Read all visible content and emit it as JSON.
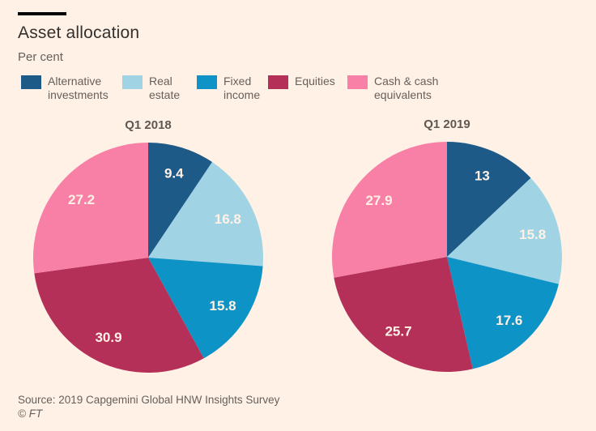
{
  "page": {
    "background_color": "#FFF1E5",
    "accent_bar_color": "#000000"
  },
  "header": {
    "title": "Asset allocation",
    "subtitle": "Per cent"
  },
  "legend": {
    "items": [
      {
        "label": "Alternative investments",
        "color": "#1E5A88"
      },
      {
        "label": "Real estate",
        "color": "#A0D4E4"
      },
      {
        "label": "Fixed income",
        "color": "#0E93C7"
      },
      {
        "label": "Equities",
        "color": "#B43059"
      },
      {
        "label": "Cash & cash equivalents",
        "color": "#F880A7"
      }
    ]
  },
  "chart_data": [
    {
      "type": "pie",
      "title": "Q1 2018",
      "categories": [
        "Alternative investments",
        "Real estate",
        "Fixed income",
        "Equities",
        "Cash & cash equivalents"
      ],
      "values": [
        9.4,
        16.8,
        15.8,
        30.9,
        27.2
      ],
      "value_labels": [
        "9.4",
        "16.8",
        "15.8",
        "30.9",
        "27.2"
      ],
      "colors": [
        "#1E5A88",
        "#A0D4E4",
        "#0E93C7",
        "#B43059",
        "#F880A7"
      ],
      "start_angle_deg": 0,
      "direction": "clockwise",
      "legend_position": "top",
      "value_label_color": "#FFF1E5"
    },
    {
      "type": "pie",
      "title": "Q1 2019",
      "categories": [
        "Alternative investments",
        "Real estate",
        "Fixed income",
        "Equities",
        "Cash & cash equivalents"
      ],
      "values": [
        13,
        15.8,
        17.6,
        25.7,
        27.9
      ],
      "value_labels": [
        "13",
        "15.8",
        "17.6",
        "25.7",
        "27.9"
      ],
      "colors": [
        "#1E5A88",
        "#A0D4E4",
        "#0E93C7",
        "#B43059",
        "#F880A7"
      ],
      "start_angle_deg": 0,
      "direction": "clockwise",
      "legend_position": "top",
      "value_label_color": "#FFF1E5"
    }
  ],
  "footer": {
    "source": "Source: 2019 Capgemini Global HNW Insights Survey",
    "copyright": "© FT"
  }
}
